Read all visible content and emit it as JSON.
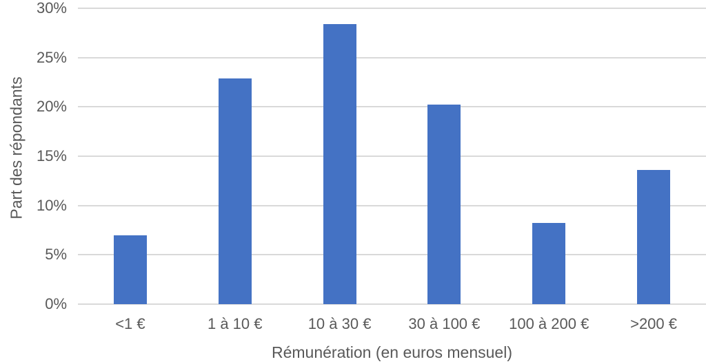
{
  "chart_data": {
    "type": "bar",
    "title": "",
    "categories": [
      "<1 €",
      "1 à 10 €",
      "10 à 30 €",
      "30 à 100 €",
      "100 à 200 €",
      ">200 €"
    ],
    "values": [
      7.0,
      22.9,
      28.4,
      20.2,
      8.2,
      13.6
    ],
    "xlabel": "Rémunération (en euros mensuel)",
    "ylabel": "Part des répondants",
    "ylim": [
      0,
      30
    ],
    "y_ticks": [
      0,
      5,
      10,
      15,
      20,
      25,
      30
    ],
    "y_tick_labels": [
      "0%",
      "5%",
      "10%",
      "15%",
      "20%",
      "25%",
      "30%"
    ],
    "grid": true,
    "legend": false,
    "colors": {
      "bar": "#4472C4",
      "gridline": "#D9D9D9",
      "text": "#595959",
      "background": "#FFFFFF"
    }
  }
}
